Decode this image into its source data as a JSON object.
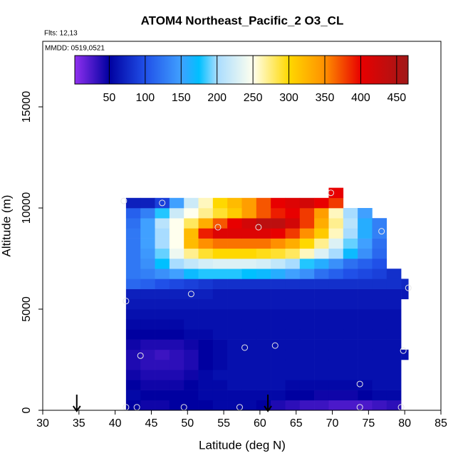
{
  "chart_data": {
    "type": "heatmap",
    "title": "ATOM4 Northeast_Pacific_2 O3_CL",
    "subtitle": "Flts: 12,13",
    "annotation": "MMDD: 0519,0521",
    "xlabel": "Latitude (deg N)",
    "ylabel": "Altitude (m)",
    "xlim": [
      30,
      85
    ],
    "xticks": [
      30,
      35,
      40,
      45,
      50,
      55,
      60,
      65,
      70,
      75,
      80,
      85
    ],
    "ylim": [
      0,
      18240
    ],
    "yticks": [
      0,
      5000,
      10000,
      15000
    ],
    "x_edges": [
      41.5,
      43.5,
      45.5,
      47.5,
      49.5,
      51.5,
      53.5,
      55.5,
      57.5,
      59.5,
      61.5,
      63.5,
      65.5,
      67.5,
      69.5,
      71.5,
      73.5,
      75.5,
      77.5,
      79.5,
      80.5
    ],
    "y_edges": [
      0,
      500,
      1000,
      1500,
      2000,
      2500,
      3000,
      3500,
      4000,
      4500,
      5000,
      5500,
      6000,
      6500,
      7000,
      7500,
      8000,
      8500,
      9000,
      9500,
      10000,
      10500,
      11000
    ],
    "z": [
      [
        50,
        45,
        45,
        50,
        50,
        50,
        55,
        55,
        55,
        50,
        40,
        35,
        30,
        30,
        25,
        25,
        25,
        30,
        35,
        null
      ],
      [
        55,
        50,
        50,
        50,
        50,
        55,
        55,
        55,
        55,
        55,
        55,
        50,
        50,
        45,
        45,
        45,
        50,
        55,
        55,
        null
      ],
      [
        50,
        45,
        45,
        45,
        50,
        55,
        55,
        60,
        60,
        60,
        60,
        55,
        55,
        55,
        55,
        55,
        55,
        60,
        60,
        null
      ],
      [
        45,
        40,
        40,
        40,
        45,
        55,
        60,
        60,
        60,
        60,
        60,
        60,
        60,
        60,
        60,
        60,
        60,
        60,
        60,
        null
      ],
      [
        40,
        35,
        35,
        35,
        40,
        50,
        55,
        60,
        60,
        60,
        60,
        60,
        60,
        60,
        60,
        60,
        60,
        60,
        60,
        null
      ],
      [
        40,
        35,
        30,
        35,
        40,
        50,
        55,
        60,
        60,
        60,
        60,
        60,
        60,
        60,
        60,
        60,
        60,
        60,
        60,
        60
      ],
      [
        45,
        40,
        40,
        40,
        45,
        50,
        55,
        60,
        60,
        60,
        60,
        60,
        60,
        60,
        60,
        60,
        60,
        60,
        60,
        null
      ],
      [
        50,
        50,
        50,
        50,
        55,
        55,
        60,
        60,
        60,
        60,
        60,
        60,
        60,
        60,
        60,
        60,
        60,
        60,
        60,
        null
      ],
      [
        55,
        55,
        55,
        55,
        60,
        60,
        60,
        60,
        60,
        60,
        60,
        60,
        60,
        60,
        60,
        60,
        60,
        60,
        60,
        null
      ],
      [
        60,
        60,
        60,
        60,
        60,
        60,
        60,
        60,
        60,
        60,
        60,
        60,
        60,
        60,
        60,
        60,
        60,
        60,
        60,
        null
      ],
      [
        65,
        65,
        65,
        65,
        65,
        65,
        65,
        65,
        65,
        65,
        65,
        65,
        65,
        65,
        65,
        65,
        65,
        65,
        65,
        null
      ],
      [
        70,
        70,
        70,
        70,
        70,
        70,
        65,
        65,
        65,
        65,
        65,
        65,
        65,
        65,
        65,
        65,
        65,
        65,
        65,
        65
      ],
      [
        115,
        110,
        100,
        95,
        90,
        85,
        80,
        80,
        80,
        80,
        80,
        80,
        80,
        80,
        80,
        80,
        80,
        80,
        80,
        75
      ],
      [
        125,
        130,
        140,
        150,
        170,
        180,
        180,
        180,
        175,
        170,
        160,
        150,
        140,
        120,
        110,
        100,
        95,
        90,
        80,
        null
      ],
      [
        125,
        140,
        175,
        200,
        215,
        225,
        230,
        230,
        230,
        225,
        215,
        200,
        180,
        160,
        140,
        120,
        110,
        100,
        null,
        null
      ],
      [
        125,
        145,
        190,
        240,
        270,
        290,
        300,
        300,
        300,
        295,
        290,
        280,
        260,
        230,
        200,
        170,
        140,
        115,
        null,
        null
      ],
      [
        125,
        150,
        200,
        250,
        320,
        350,
        360,
        360,
        360,
        360,
        350,
        330,
        300,
        270,
        230,
        190,
        150,
        120,
        null,
        null
      ],
      [
        125,
        150,
        200,
        250,
        320,
        390,
        410,
        410,
        410,
        410,
        400,
        380,
        350,
        310,
        260,
        200,
        160,
        130,
        null,
        null
      ],
      [
        120,
        150,
        210,
        250,
        280,
        330,
        370,
        400,
        420,
        440,
        440,
        420,
        380,
        330,
        270,
        210,
        160,
        130,
        null,
        null
      ],
      [
        110,
        130,
        180,
        220,
        250,
        270,
        290,
        310,
        340,
        370,
        390,
        400,
        380,
        340,
        260,
        200,
        150,
        null,
        null,
        null
      ],
      [
        70,
        70,
        90,
        150,
        220,
        260,
        300,
        320,
        340,
        370,
        400,
        410,
        420,
        400,
        380,
        null,
        null,
        null,
        null,
        null
      ],
      [
        null,
        null,
        null,
        null,
        null,
        null,
        null,
        null,
        null,
        null,
        null,
        null,
        null,
        null,
        400,
        null,
        null,
        null,
        null,
        null
      ]
    ],
    "colorscale": [
      [
        2,
        "#9030f0"
      ],
      [
        50,
        "#0000a0"
      ],
      [
        100,
        "#2050e8"
      ],
      [
        150,
        "#40a0ff"
      ],
      [
        175,
        "#00c0ff"
      ],
      [
        200,
        "#a8dcff"
      ],
      [
        250,
        "#ffffee"
      ],
      [
        300,
        "#ffd800"
      ],
      [
        350,
        "#ff9000"
      ],
      [
        400,
        "#e80000"
      ],
      [
        466,
        "#a01818"
      ]
    ],
    "colorbar_lim": [
      2,
      466
    ],
    "colorbar_ticks": [
      50,
      100,
      150,
      200,
      250,
      300,
      350,
      400,
      450
    ],
    "points": {
      "x": [
        41.2,
        46.5,
        54.2,
        59.8,
        69.8,
        76.8,
        80.5,
        41.5,
        50.5,
        57.9,
        62.1,
        43.5,
        79.8,
        73.8,
        41.5,
        43.0,
        49.5,
        57.2,
        73.8,
        79.5
      ],
      "y": [
        10350,
        10250,
        9050,
        9050,
        10750,
        8850,
        6050,
        5400,
        5750,
        3100,
        3200,
        2700,
        2950,
        1300,
        150,
        150,
        150,
        150,
        150,
        150
      ]
    },
    "arrows_x": [
      34.7,
      61.1
    ]
  }
}
